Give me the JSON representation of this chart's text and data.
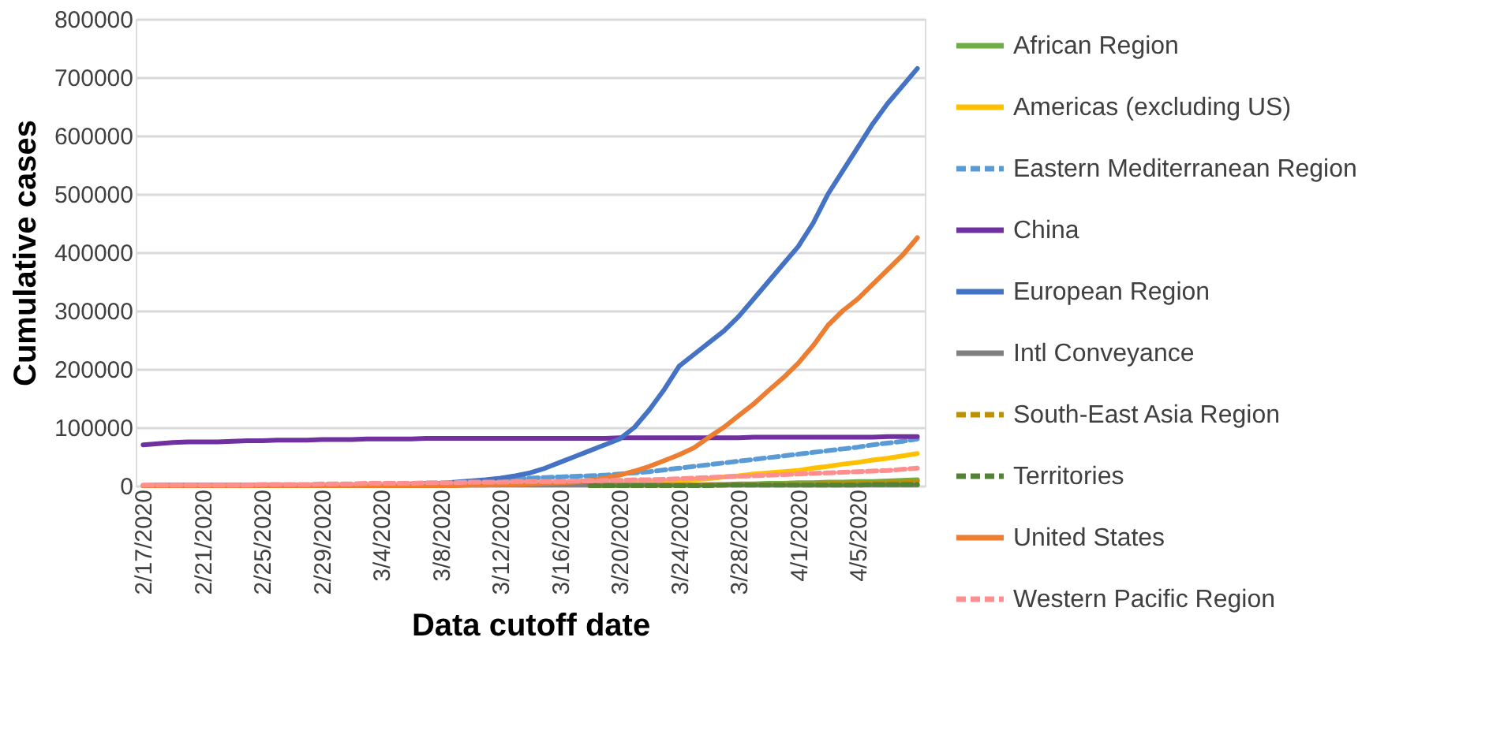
{
  "chart_data": {
    "type": "line",
    "xlabel": "Data cutoff date",
    "ylabel": "Cumulative cases",
    "categories": [
      "2/17/2020",
      null,
      null,
      null,
      "2/21/2020",
      null,
      null,
      null,
      "2/25/2020",
      null,
      null,
      null,
      "2/29/2020",
      null,
      null,
      null,
      "3/4/2020",
      null,
      null,
      null,
      "3/8/2020",
      null,
      null,
      null,
      "3/12/2020",
      null,
      null,
      null,
      "3/16/2020",
      null,
      null,
      null,
      "3/20/2020",
      null,
      null,
      null,
      "3/24/2020",
      null,
      null,
      null,
      "3/28/2020",
      null,
      null,
      null,
      "4/1/2020",
      null,
      null,
      null,
      "4/5/2020",
      null,
      null,
      null,
      null
    ],
    "ylim": [
      0,
      800000
    ],
    "yticks": [
      0,
      100000,
      200000,
      300000,
      400000,
      500000,
      600000,
      700000,
      800000
    ],
    "grid": "y",
    "legend": "right",
    "marker": "none",
    "series": [
      {
        "name": "African Region",
        "color": "#70ad47",
        "line_style": "solid",
        "values": [
          null,
          null,
          null,
          null,
          null,
          null,
          null,
          null,
          null,
          null,
          null,
          null,
          null,
          null,
          null,
          null,
          null,
          null,
          null,
          null,
          null,
          null,
          null,
          null,
          null,
          null,
          null,
          null,
          null,
          null,
          0,
          0,
          0,
          1000,
          1000,
          1000,
          1000,
          1000,
          2000,
          2000,
          3000,
          3000,
          4000,
          4000,
          5000,
          5000,
          6000,
          6000,
          7000,
          7000,
          8000,
          9000,
          10000
        ]
      },
      {
        "name": "Americas (excluding US)",
        "color": "#ffc000",
        "line_style": "solid",
        "values": [
          null,
          null,
          null,
          null,
          null,
          null,
          null,
          null,
          null,
          null,
          null,
          null,
          null,
          null,
          null,
          null,
          null,
          null,
          null,
          null,
          null,
          null,
          null,
          null,
          null,
          null,
          null,
          null,
          null,
          null,
          2000,
          3000,
          3000,
          4000,
          5000,
          6000,
          8000,
          10000,
          12000,
          15000,
          17000,
          20000,
          22000,
          24000,
          26000,
          30000,
          33000,
          37000,
          40000,
          44000,
          47000,
          51000,
          55000
        ]
      },
      {
        "name": "Eastern Mediterranean Region",
        "color": "#5b9bd5",
        "line_style": "dashed",
        "values": [
          null,
          null,
          null,
          null,
          null,
          null,
          null,
          null,
          null,
          null,
          null,
          null,
          null,
          null,
          null,
          null,
          null,
          null,
          null,
          null,
          null,
          null,
          null,
          null,
          11000,
          12000,
          13000,
          14000,
          15000,
          16000,
          17000,
          18000,
          20000,
          22000,
          24000,
          27000,
          30000,
          33000,
          36000,
          39000,
          42000,
          45000,
          48000,
          51000,
          54000,
          57000,
          60000,
          63000,
          66000,
          70000,
          73000,
          76000,
          80000
        ]
      },
      {
        "name": "China",
        "color": "#7030a0",
        "line_style": "solid",
        "values": [
          70000,
          72000,
          74000,
          75000,
          75000,
          75000,
          76000,
          77000,
          77000,
          78000,
          78000,
          78000,
          79000,
          79000,
          79000,
          80000,
          80000,
          80000,
          80000,
          81000,
          81000,
          81000,
          81000,
          81000,
          81000,
          81000,
          81000,
          81000,
          81000,
          81000,
          81000,
          81000,
          82000,
          82000,
          82000,
          82000,
          82000,
          82000,
          82000,
          82000,
          82000,
          83000,
          83000,
          83000,
          83000,
          83000,
          83000,
          83000,
          83000,
          83000,
          84000,
          84000,
          84000
        ]
      },
      {
        "name": "European Region",
        "color": "#4472c4",
        "line_style": "solid",
        "values": [
          null,
          null,
          null,
          null,
          null,
          null,
          null,
          null,
          null,
          null,
          null,
          null,
          null,
          null,
          null,
          null,
          null,
          null,
          3000,
          4000,
          4000,
          6000,
          8000,
          10000,
          13000,
          17000,
          22000,
          30000,
          40000,
          50000,
          60000,
          70000,
          80000,
          100000,
          130000,
          165000,
          205000,
          225000,
          245000,
          265000,
          290000,
          320000,
          350000,
          380000,
          410000,
          450000,
          500000,
          540000,
          580000,
          620000,
          655000,
          685000,
          715000
        ]
      },
      {
        "name": "Intl Conveyance",
        "color": "#808080",
        "line_style": "solid",
        "values": [
          0,
          1000,
          1000,
          1000,
          1000,
          1000,
          1000,
          1000,
          1000,
          1000,
          1000,
          1000,
          1000,
          1000,
          1000,
          1000,
          1000,
          1000,
          1000,
          1000,
          1000,
          1000,
          1000,
          1000,
          1000,
          1000,
          1000,
          1000,
          1000,
          1000,
          1000,
          1000,
          1000,
          1000,
          1000,
          1000,
          1000,
          1000,
          1000,
          1000,
          1000,
          1000,
          1000,
          1000,
          1000,
          1000,
          1000,
          1000,
          1000,
          1000,
          1000,
          1000,
          1000
        ]
      },
      {
        "name": "South-East Asia Region",
        "color": "#bf9000",
        "line_style": "dashed",
        "values": [
          null,
          null,
          null,
          null,
          null,
          null,
          null,
          null,
          null,
          null,
          null,
          null,
          null,
          null,
          null,
          null,
          null,
          null,
          null,
          null,
          null,
          null,
          null,
          null,
          null,
          null,
          null,
          null,
          null,
          null,
          0,
          0,
          0,
          0,
          0,
          1000,
          1000,
          1000,
          1000,
          1000,
          2000,
          2000,
          2000,
          3000,
          3000,
          3000,
          4000,
          4000,
          5000,
          5000,
          6000,
          6000,
          7000
        ]
      },
      {
        "name": "Territories",
        "color": "#548235",
        "line_style": "dashed",
        "values": [
          null,
          null,
          null,
          null,
          null,
          null,
          null,
          null,
          null,
          null,
          null,
          null,
          null,
          null,
          null,
          null,
          null,
          null,
          null,
          null,
          null,
          null,
          null,
          null,
          null,
          null,
          null,
          null,
          null,
          null,
          0,
          0,
          0,
          0,
          0,
          0,
          0,
          0,
          0,
          1000,
          1000,
          1000,
          1000,
          1000,
          1000,
          1000,
          1000,
          1000,
          1000,
          2000,
          2000,
          2000,
          2000
        ]
      },
      {
        "name": "United States",
        "color": "#ed7d31",
        "line_style": "solid",
        "values": [
          0,
          0,
          0,
          0,
          0,
          0,
          0,
          0,
          0,
          0,
          0,
          0,
          0,
          0,
          0,
          0,
          0,
          0,
          0,
          0,
          0,
          0,
          1000,
          1000,
          2000,
          2000,
          3000,
          4000,
          5000,
          6000,
          9000,
          13000,
          18000,
          25000,
          33000,
          43000,
          53000,
          65000,
          83000,
          100000,
          120000,
          140000,
          163000,
          185000,
          210000,
          240000,
          275000,
          300000,
          320000,
          345000,
          370000,
          395000,
          425000
        ]
      },
      {
        "name": "Western Pacific Region",
        "color": "#ff8f8f",
        "line_style": "dashed",
        "values": [
          1000,
          1000,
          1000,
          1000,
          1000,
          1000,
          1000,
          1000,
          2000,
          2000,
          2000,
          2000,
          3000,
          3000,
          3000,
          4000,
          4000,
          4000,
          4000,
          5000,
          5000,
          5000,
          6000,
          6000,
          6000,
          7000,
          7000,
          7000,
          7000,
          8000,
          8000,
          9000,
          9000,
          10000,
          10000,
          11000,
          12000,
          13000,
          14000,
          15000,
          16000,
          17000,
          18000,
          19000,
          20000,
          21000,
          22000,
          23000,
          24000,
          25000,
          26000,
          28000,
          30000
        ]
      }
    ]
  }
}
